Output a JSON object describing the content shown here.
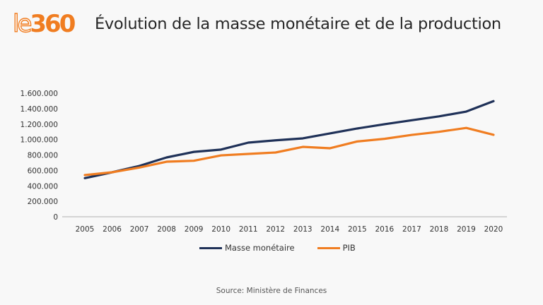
{
  "logo": {
    "part1": "le",
    "part2": "360"
  },
  "header": {
    "title": "Évolution de la masse monétaire et de la production"
  },
  "source": "Source: Ministère de Finances",
  "colors": {
    "masse": "#1f3158",
    "pib": "#f07d21",
    "axis": "#c8c8c8",
    "brand": "#f07d21"
  },
  "chart_data": {
    "type": "line",
    "title": "Évolution de la masse monétaire et de la production",
    "xlabel": "",
    "ylabel": "",
    "x": [
      "2005",
      "2006",
      "2007",
      "2008",
      "2009",
      "2010",
      "2011",
      "2012",
      "2013",
      "2014",
      "2015",
      "2016",
      "2017",
      "2018",
      "2019",
      "2020"
    ],
    "ylim": [
      0,
      1600000
    ],
    "yticks": [
      0,
      200000,
      400000,
      600000,
      800000,
      1000000,
      1200000,
      1400000,
      1600000
    ],
    "ytick_labels": [
      "0",
      "200.000",
      "400.000",
      "600.000",
      "800.000",
      "1.000.000",
      "1.200.000",
      "1.400.000",
      "1.600.000"
    ],
    "grid": false,
    "legend_position": "bottom",
    "series": [
      {
        "name": "Masse monétaire",
        "color": "#1f3158",
        "values": [
          500000,
          576000,
          658000,
          768000,
          840000,
          870000,
          960000,
          990000,
          1015000,
          1079000,
          1143000,
          1198000,
          1250000,
          1300000,
          1362000,
          1497000
        ]
      },
      {
        "name": "PIB",
        "color": "#f07d21",
        "values": [
          540000,
          576000,
          637000,
          713000,
          725000,
          795000,
          814000,
          832000,
          905000,
          887000,
          975000,
          1009000,
          1060000,
          1100000,
          1150000,
          1061000
        ]
      }
    ]
  }
}
